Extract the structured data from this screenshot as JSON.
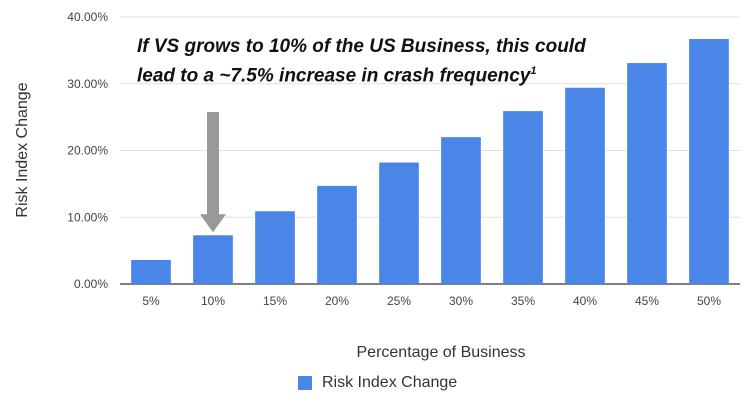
{
  "chart_data": {
    "type": "bar",
    "title": "",
    "xlabel": "Percentage of Business",
    "ylabel": "Risk Index Change",
    "categories": [
      "5%",
      "10%",
      "15%",
      "20%",
      "25%",
      "30%",
      "35%",
      "40%",
      "45%",
      "50%"
    ],
    "series": [
      {
        "name": "Risk Index Change",
        "values": [
          3.6,
          7.3,
          10.9,
          14.7,
          18.2,
          22.0,
          25.9,
          29.4,
          33.1,
          36.7
        ]
      }
    ],
    "ylim": [
      0,
      40
    ],
    "yticks": [
      "0.00%",
      "10.00%",
      "20.00%",
      "30.00%",
      "40.00%"
    ],
    "ytick_values": [
      0,
      10,
      20,
      30,
      40
    ],
    "grid": "horizontal",
    "legend_position": "bottom",
    "annotation": {
      "line1": "If VS grows to 10% of the US Business, this could",
      "line2": "lead to a ~7.5% increase in crash frequency",
      "footnote_marker": "1",
      "arrow_target_category": "10%"
    },
    "colors": {
      "bar": "#4A86E8",
      "arrow": "#999999",
      "grid": "#E0E0E0",
      "axis": "#333333"
    }
  }
}
